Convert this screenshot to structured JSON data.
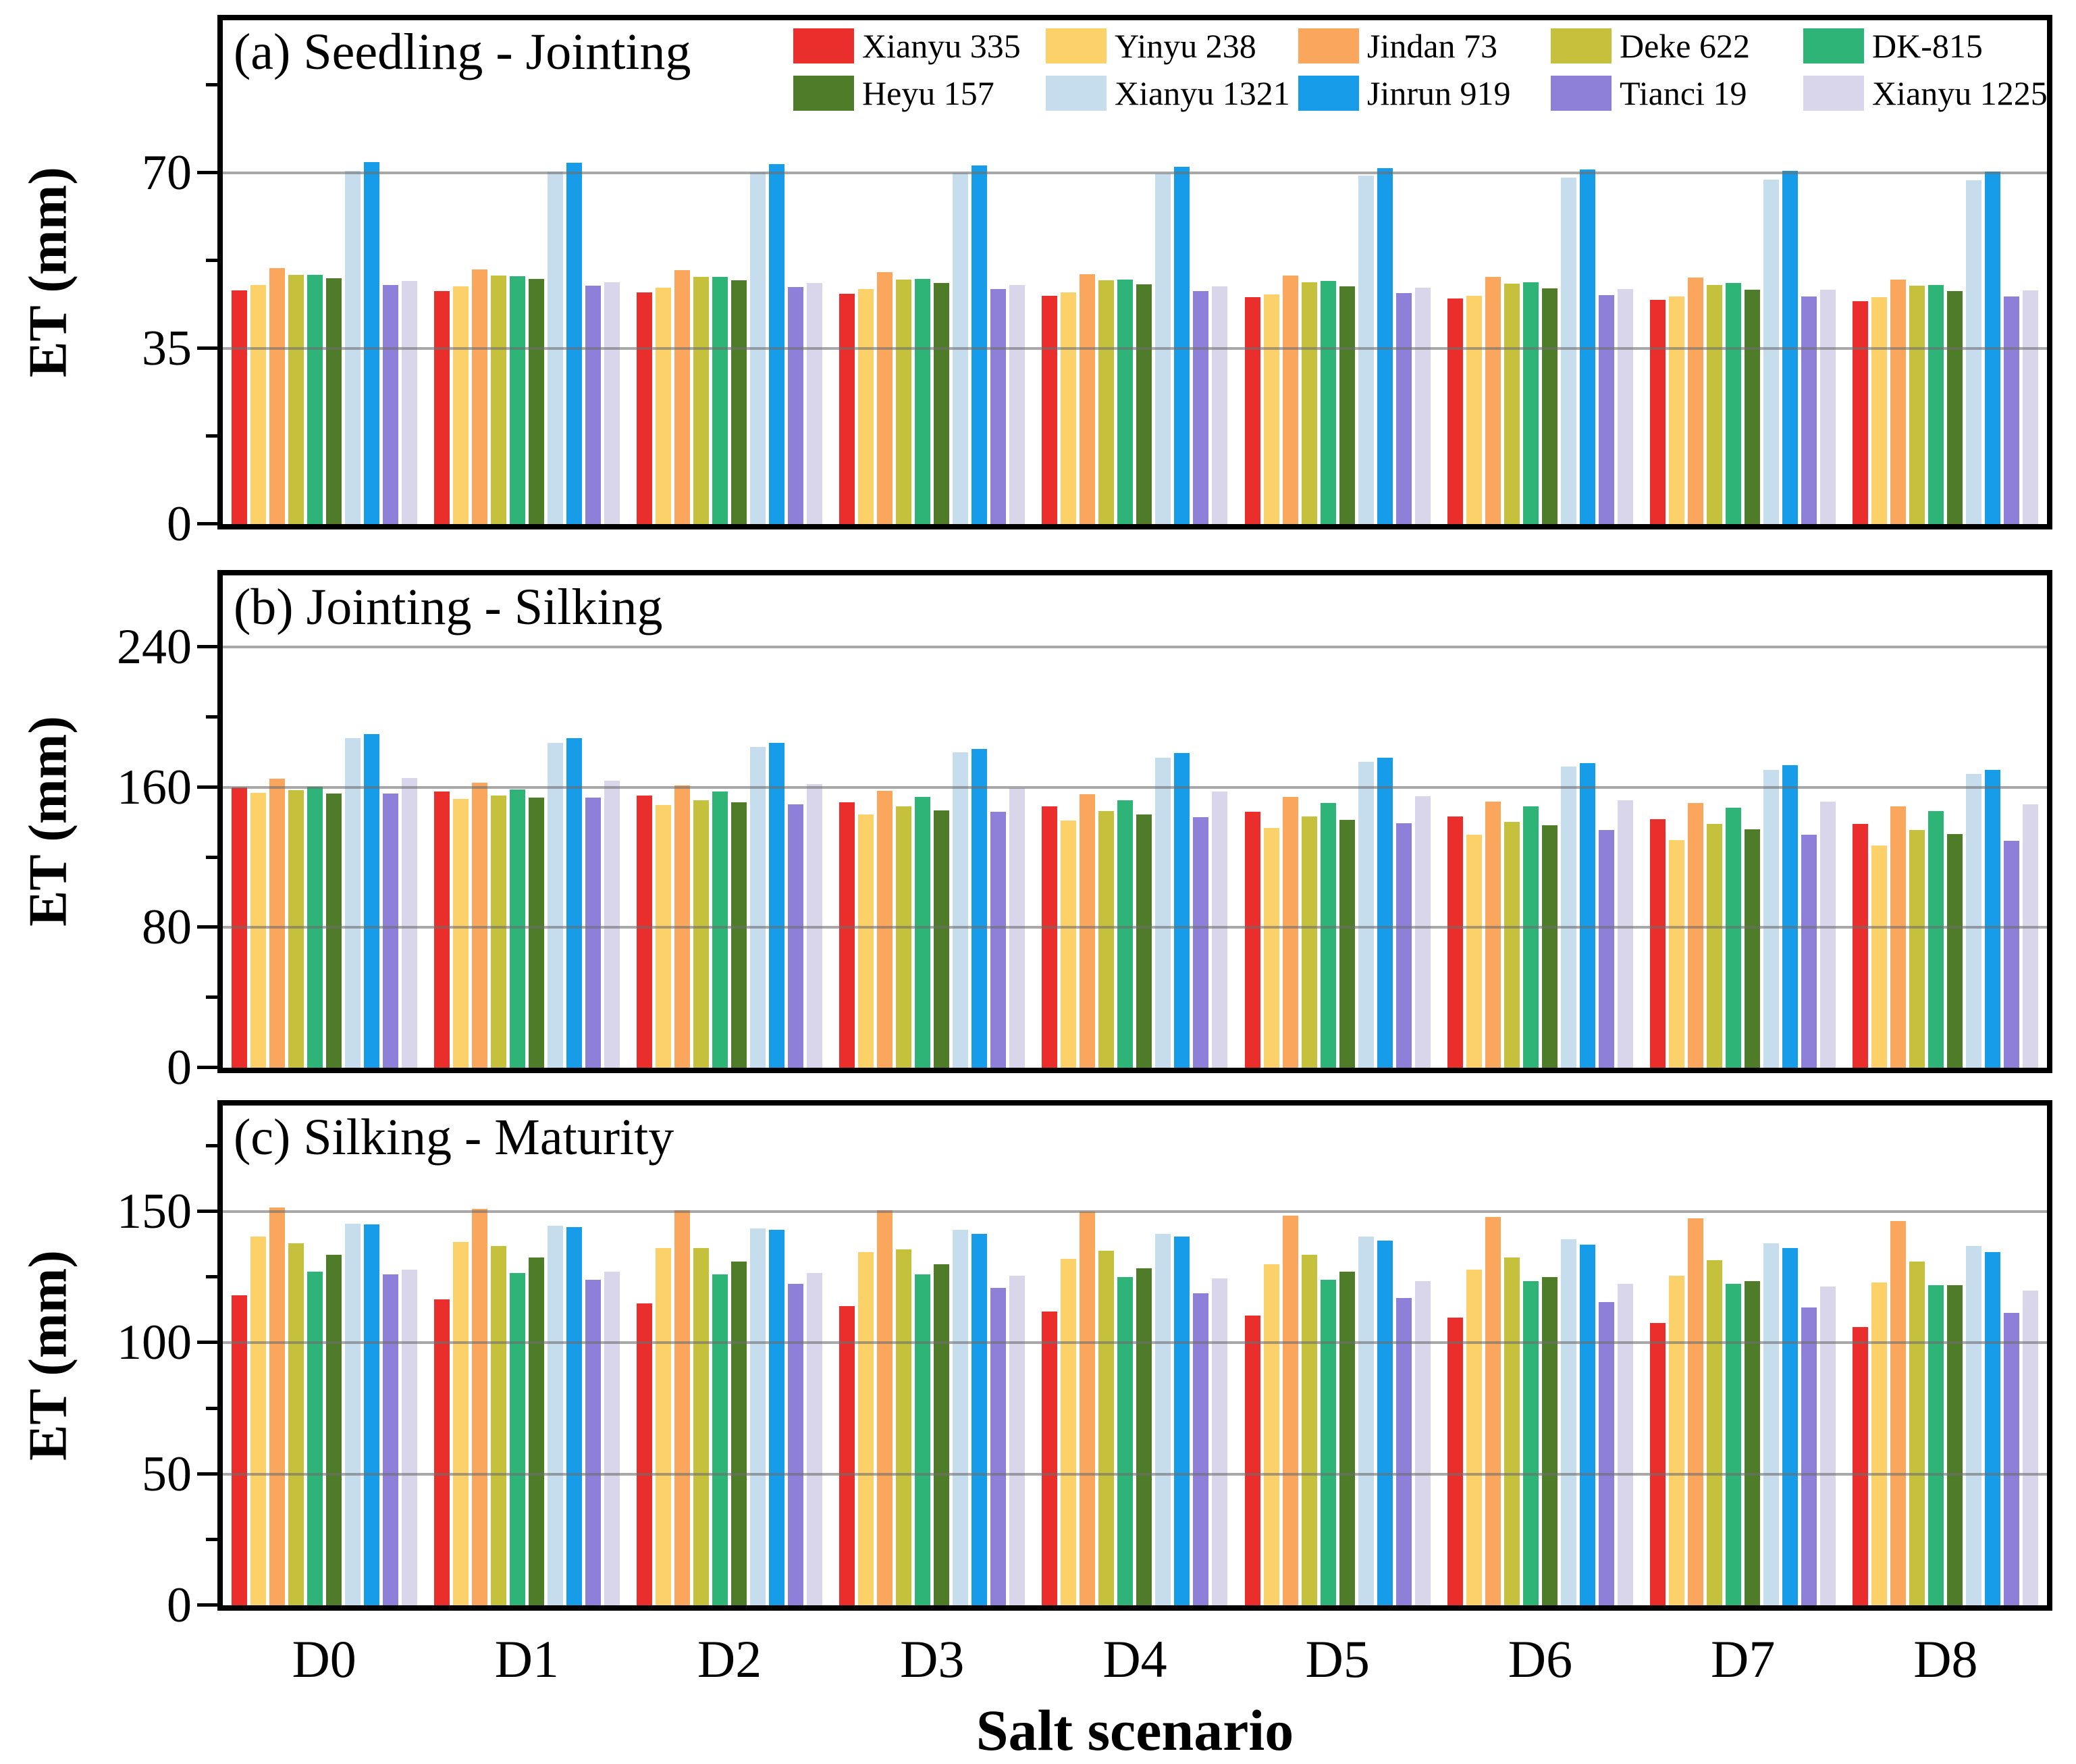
{
  "figure": {
    "x_axis_label": "Salt scenario",
    "y_axis_label": "ET (mm)",
    "categories": [
      "D0",
      "D1",
      "D2",
      "D3",
      "D4",
      "D5",
      "D6",
      "D7",
      "D8"
    ],
    "legend": [
      {
        "name": "Xianyu 335",
        "color": "#ea2e2c"
      },
      {
        "name": "Yinyu 238",
        "color": "#fcd169"
      },
      {
        "name": "Jindan 73",
        "color": "#fba65d"
      },
      {
        "name": "Deke 622",
        "color": "#c5c13c"
      },
      {
        "name": "DK-815",
        "color": "#2fb478"
      },
      {
        "name": "Heyu 157",
        "color": "#4f7c29"
      },
      {
        "name": "Xianyu 1321",
        "color": "#c5dded"
      },
      {
        "name": "Jinrun 919",
        "color": "#169ce8"
      },
      {
        "name": "Tianci 19",
        "color": "#8e80d9"
      },
      {
        "name": "Xianyu 1225",
        "color": "#d9d5eb"
      }
    ],
    "gridline_color": "#6e6e6e"
  },
  "chart_data": [
    {
      "type": "bar",
      "panel": "a",
      "title": "(a) Seedling - Jointing",
      "ylabel": "ET (mm)",
      "xlabel": "Salt scenario",
      "ylim": [
        0,
        100.4
      ],
      "yticks": [
        0,
        35,
        70
      ],
      "yticks_minor": [
        17.5,
        52.5,
        87.5
      ],
      "grid": true,
      "legend_position": "top-right-inside",
      "categories": [
        "D0",
        "D1",
        "D2",
        "D3",
        "D4",
        "D5",
        "D6",
        "D7",
        "D8"
      ],
      "series": [
        {
          "name": "Xianyu 335",
          "values": [
            46.6,
            46.4,
            46.2,
            45.9,
            45.5,
            45.2,
            44.9,
            44.7,
            44.4
          ]
        },
        {
          "name": "Yinyu 238",
          "values": [
            47.6,
            47.4,
            47.1,
            46.8,
            46.1,
            45.8,
            45.5,
            45.3,
            45.2
          ]
        },
        {
          "name": "Jindan 73",
          "values": [
            51.0,
            50.8,
            50.6,
            50.2,
            49.8,
            49.5,
            49.3,
            49.1,
            48.7
          ]
        },
        {
          "name": "Deke 622",
          "values": [
            49.7,
            49.5,
            49.3,
            48.7,
            48.6,
            48.2,
            47.9,
            47.7,
            47.5
          ]
        },
        {
          "name": "DK-815",
          "values": [
            49.6,
            49.4,
            49.2,
            48.9,
            48.7,
            48.4,
            48.2,
            48.0,
            47.6
          ]
        },
        {
          "name": "Heyu 157",
          "values": [
            49.0,
            48.8,
            48.6,
            48.1,
            47.8,
            47.4,
            47.0,
            46.7,
            46.4
          ]
        },
        {
          "name": "Xianyu 1321",
          "values": [
            70.4,
            70.3,
            70.1,
            70.0,
            69.8,
            69.4,
            69.0,
            68.7,
            68.5
          ]
        },
        {
          "name": "Jinrun 919",
          "values": [
            72.2,
            72.0,
            71.8,
            71.5,
            71.2,
            70.9,
            70.6,
            70.4,
            70.2
          ]
        },
        {
          "name": "Tianci 19",
          "values": [
            47.7,
            47.5,
            47.3,
            46.9,
            46.4,
            46.0,
            45.6,
            45.3,
            45.3
          ]
        },
        {
          "name": "Xianyu 1225",
          "values": [
            48.4,
            48.2,
            48.0,
            47.7,
            47.4,
            47.1,
            46.9,
            46.7,
            46.6
          ]
        }
      ]
    },
    {
      "type": "bar",
      "panel": "b",
      "title": "(b) Jointing - Silking",
      "ylabel": "ET (mm)",
      "xlabel": "Salt scenario",
      "ylim": [
        0,
        281
      ],
      "yticks": [
        0,
        80,
        160,
        240
      ],
      "yticks_minor": [
        40,
        120,
        200
      ],
      "grid": true,
      "categories": [
        "D0",
        "D1",
        "D2",
        "D3",
        "D4",
        "D5",
        "D6",
        "D7",
        "D8"
      ],
      "series": [
        {
          "name": "Xianyu 335",
          "values": [
            160.0,
            157.5,
            155.5,
            151.5,
            149.0,
            146.0,
            143.5,
            142.0,
            139.0
          ]
        },
        {
          "name": "Yinyu 238",
          "values": [
            157.0,
            153.5,
            150.0,
            144.5,
            141.0,
            137.0,
            133.0,
            130.0,
            127.0
          ]
        },
        {
          "name": "Jindan 73",
          "values": [
            165.0,
            162.5,
            161.0,
            158.0,
            156.0,
            154.5,
            152.0,
            151.0,
            149.0
          ]
        },
        {
          "name": "Deke 622",
          "values": [
            158.5,
            155.5,
            152.5,
            149.0,
            146.5,
            143.5,
            140.5,
            139.0,
            135.5
          ]
        },
        {
          "name": "DK-815",
          "values": [
            160.5,
            159.0,
            157.5,
            154.5,
            152.5,
            151.0,
            149.0,
            148.5,
            146.5
          ]
        },
        {
          "name": "Heyu 157",
          "values": [
            156.5,
            154.0,
            151.5,
            147.0,
            144.5,
            141.5,
            138.5,
            136.0,
            133.5
          ]
        },
        {
          "name": "Xianyu 1321",
          "values": [
            188.0,
            185.5,
            183.0,
            180.0,
            177.0,
            174.5,
            172.0,
            170.0,
            167.5
          ]
        },
        {
          "name": "Jinrun 919",
          "values": [
            190.5,
            188.0,
            185.5,
            182.0,
            179.5,
            177.0,
            174.0,
            172.5,
            170.0
          ]
        },
        {
          "name": "Tianci 19",
          "values": [
            156.5,
            154.0,
            150.5,
            146.0,
            143.0,
            139.5,
            135.5,
            133.0,
            129.5
          ]
        },
        {
          "name": "Xianyu 1225",
          "values": [
            165.5,
            164.0,
            162.0,
            159.5,
            157.5,
            155.0,
            152.5,
            152.0,
            150.5
          ]
        }
      ]
    },
    {
      "type": "bar",
      "panel": "c",
      "title": "(c) Silking - Maturity",
      "ylabel": "ET (mm)",
      "xlabel": "Salt scenario",
      "ylim": [
        0,
        190.4
      ],
      "yticks": [
        0,
        50,
        100,
        150
      ],
      "yticks_minor": [
        25,
        75,
        125,
        175
      ],
      "grid": true,
      "categories": [
        "D0",
        "D1",
        "D2",
        "D3",
        "D4",
        "D5",
        "D6",
        "D7",
        "D8"
      ],
      "series": [
        {
          "name": "Xianyu 335",
          "values": [
            118.0,
            116.5,
            115.0,
            114.0,
            112.0,
            110.5,
            109.5,
            107.5,
            106.0
          ]
        },
        {
          "name": "Yinyu 238",
          "values": [
            140.5,
            138.5,
            136.0,
            134.5,
            132.0,
            130.0,
            128.0,
            125.5,
            123.0
          ]
        },
        {
          "name": "Jindan 73",
          "values": [
            151.5,
            151.0,
            150.5,
            150.5,
            150.0,
            148.5,
            148.0,
            147.5,
            146.5
          ]
        },
        {
          "name": "Deke 622",
          "values": [
            138.0,
            137.0,
            136.0,
            135.5,
            135.0,
            133.5,
            132.5,
            131.5,
            131.0
          ]
        },
        {
          "name": "DK-815",
          "values": [
            127.0,
            126.5,
            126.0,
            126.0,
            125.0,
            124.0,
            123.5,
            122.5,
            122.0
          ]
        },
        {
          "name": "Heyu 157",
          "values": [
            133.5,
            132.5,
            131.0,
            130.0,
            128.5,
            127.0,
            125.0,
            123.5,
            122.0
          ]
        },
        {
          "name": "Xianyu 1321",
          "values": [
            145.5,
            144.5,
            143.5,
            143.0,
            141.5,
            140.5,
            139.5,
            138.0,
            137.0
          ]
        },
        {
          "name": "Jinrun 919",
          "values": [
            145.0,
            144.0,
            143.0,
            141.5,
            140.5,
            139.0,
            137.5,
            136.0,
            134.5
          ]
        },
        {
          "name": "Tianci 19",
          "values": [
            126.0,
            124.0,
            122.5,
            121.0,
            119.0,
            117.0,
            115.5,
            113.5,
            111.5
          ]
        },
        {
          "name": "Xianyu 1225",
          "values": [
            128.0,
            127.0,
            126.5,
            125.5,
            124.5,
            123.5,
            122.5,
            121.5,
            120.0
          ]
        }
      ]
    }
  ]
}
